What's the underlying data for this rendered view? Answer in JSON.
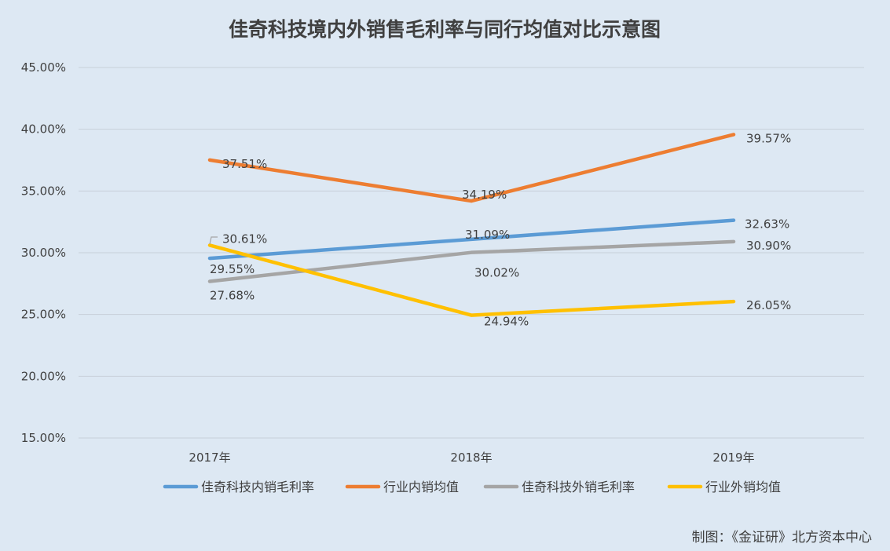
{
  "chart_data": {
    "type": "line",
    "title": "佳奇科技境内外销售毛利率与同行均值对比示意图",
    "categories": [
      "2017年",
      "2018年",
      "2019年"
    ],
    "ylim": [
      15,
      45
    ],
    "y_ticks": [
      "15.00%",
      "20.00%",
      "25.00%",
      "30.00%",
      "35.00%",
      "40.00%",
      "45.00%"
    ],
    "grid": true,
    "legend_position": "bottom",
    "series": [
      {
        "name": "佳奇科技内销毛利率",
        "color": "#5b9bd5",
        "values": [
          29.55,
          31.09,
          32.63
        ],
        "labels": [
          "29.55%",
          "31.09%",
          "32.63%"
        ]
      },
      {
        "name": "行业内销均值",
        "color": "#ed7d31",
        "values": [
          37.51,
          34.19,
          39.57
        ],
        "labels": [
          "37.51%",
          "34.19%",
          "39.57%"
        ]
      },
      {
        "name": "佳奇科技外销毛利率",
        "color": "#a5a5a5",
        "values": [
          27.68,
          30.02,
          30.9
        ],
        "labels": [
          "27.68%",
          "30.02%",
          "30.90%"
        ]
      },
      {
        "name": "行业外销均值",
        "color": "#ffc000",
        "values": [
          30.61,
          24.94,
          26.05
        ],
        "labels": [
          "30.61%",
          "24.94%",
          "26.05%"
        ]
      }
    ]
  },
  "credit": "制图：《金证研》北方资本中心"
}
